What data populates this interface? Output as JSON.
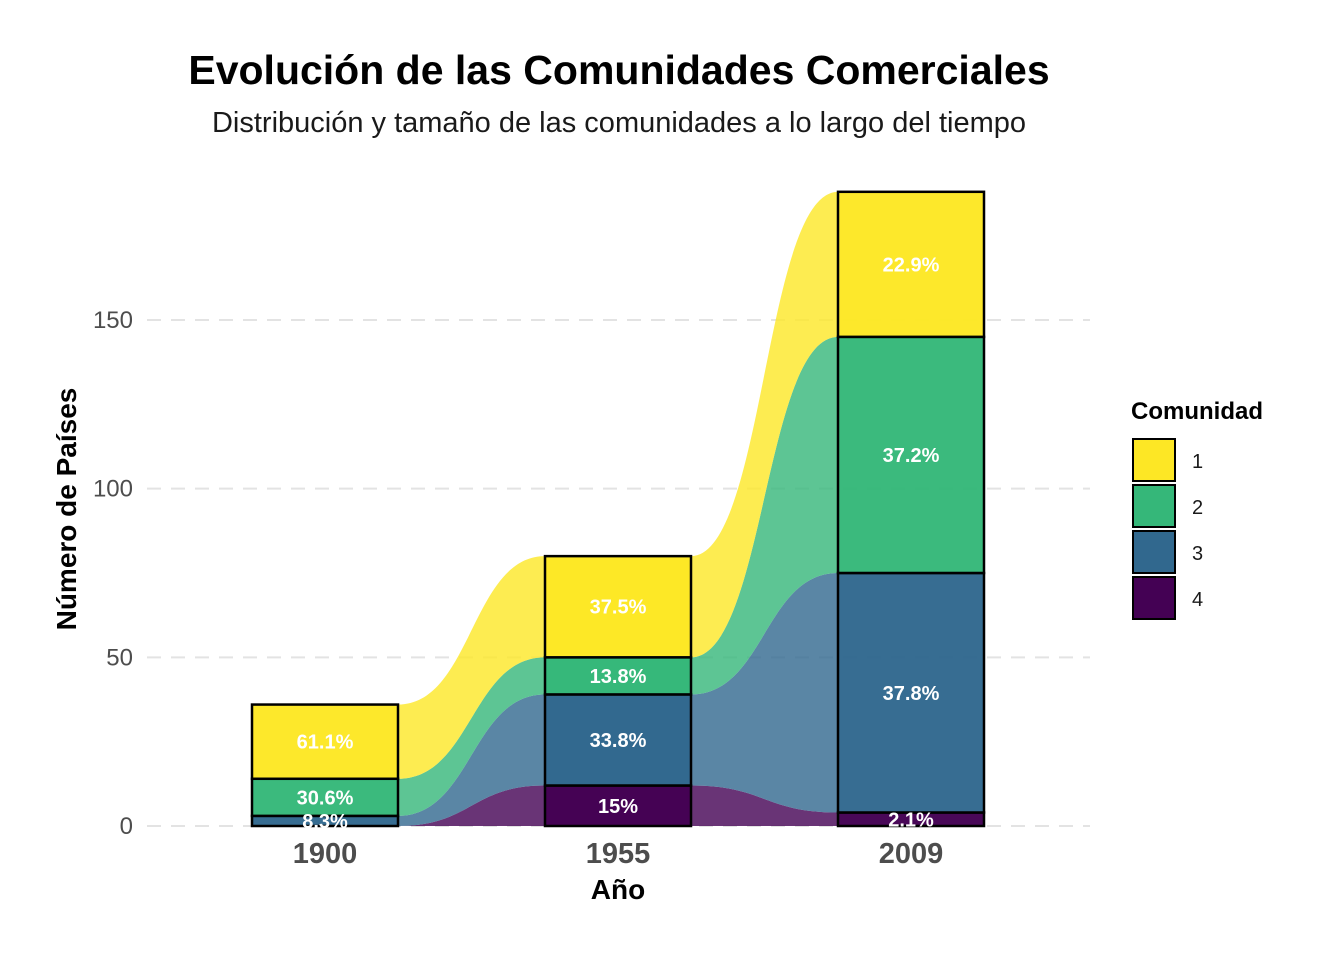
{
  "chart_data": {
    "type": "area",
    "title": "Evolución de las Comunidades Comerciales",
    "subtitle": "Distribución y tamaño de las comunidades a lo largo del tiempo",
    "xlabel": "Año",
    "ylabel": "Número de Países",
    "categories": [
      "1900",
      "1955",
      "2009"
    ],
    "y_ticks": [
      0,
      50,
      100,
      150
    ],
    "ylim": [
      0,
      188
    ],
    "grid": "horizontal dashed",
    "legend": {
      "title": "Comunidad",
      "position": "right"
    },
    "series": [
      {
        "name": "1",
        "color": "#fde725",
        "values": [
          22,
          30,
          43
        ],
        "labels": [
          "61.1%",
          "37.5%",
          "22.9%"
        ]
      },
      {
        "name": "2",
        "color": "#35b779",
        "values": [
          11,
          11,
          70
        ],
        "labels": [
          "30.6%",
          "13.8%",
          "37.2%"
        ]
      },
      {
        "name": "3",
        "color": "#31688e",
        "values": [
          3,
          27,
          71
        ],
        "labels": [
          "8.3%",
          "33.8%",
          "37.8%"
        ]
      },
      {
        "name": "4",
        "color": "#440154",
        "values": [
          0,
          12,
          4
        ],
        "labels": [
          "",
          "15%",
          "2.1%"
        ]
      }
    ]
  }
}
